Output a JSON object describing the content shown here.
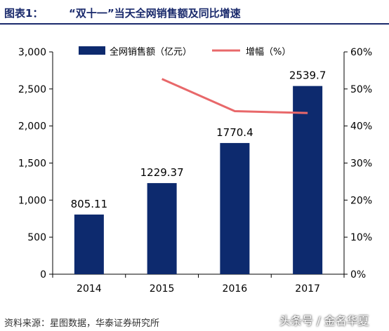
{
  "header": {
    "label": "图表1：",
    "title": "“双十一”当天全网销售额及同比增速"
  },
  "chart_data": {
    "type": "bar",
    "categories": [
      "2014",
      "2015",
      "2016",
      "2017"
    ],
    "series": [
      {
        "name": "全网销售额（亿元）",
        "type": "bar",
        "axis": "left",
        "color": "#0d2a6e",
        "values": [
          805.11,
          1229.37,
          1770.4,
          2539.7
        ],
        "labels": [
          "805.11",
          "1229.37",
          "1770.4",
          "2539.7"
        ]
      },
      {
        "name": "增幅（%）",
        "type": "line",
        "axis": "right",
        "color": "#e8686a",
        "values": [
          null,
          52.7,
          44.0,
          43.5
        ]
      }
    ],
    "y_left": {
      "lim": [
        0,
        3000
      ],
      "ticks": [
        0,
        500,
        1000,
        1500,
        2000,
        2500,
        3000
      ],
      "tick_labels": [
        "0",
        "500",
        "1,000",
        "1,500",
        "2,000",
        "2,500",
        "3,000"
      ]
    },
    "y_right": {
      "lim": [
        0,
        60
      ],
      "ticks": [
        0,
        10,
        20,
        30,
        40,
        50,
        60
      ],
      "tick_labels": [
        "0%",
        "10%",
        "20%",
        "30%",
        "40%",
        "50%",
        "60%"
      ]
    },
    "legend_position": "top",
    "grid": false
  },
  "footer": {
    "source": "资料来源：星图数据，华泰证券研究所",
    "watermark": "头条号 / 金名华夏"
  }
}
